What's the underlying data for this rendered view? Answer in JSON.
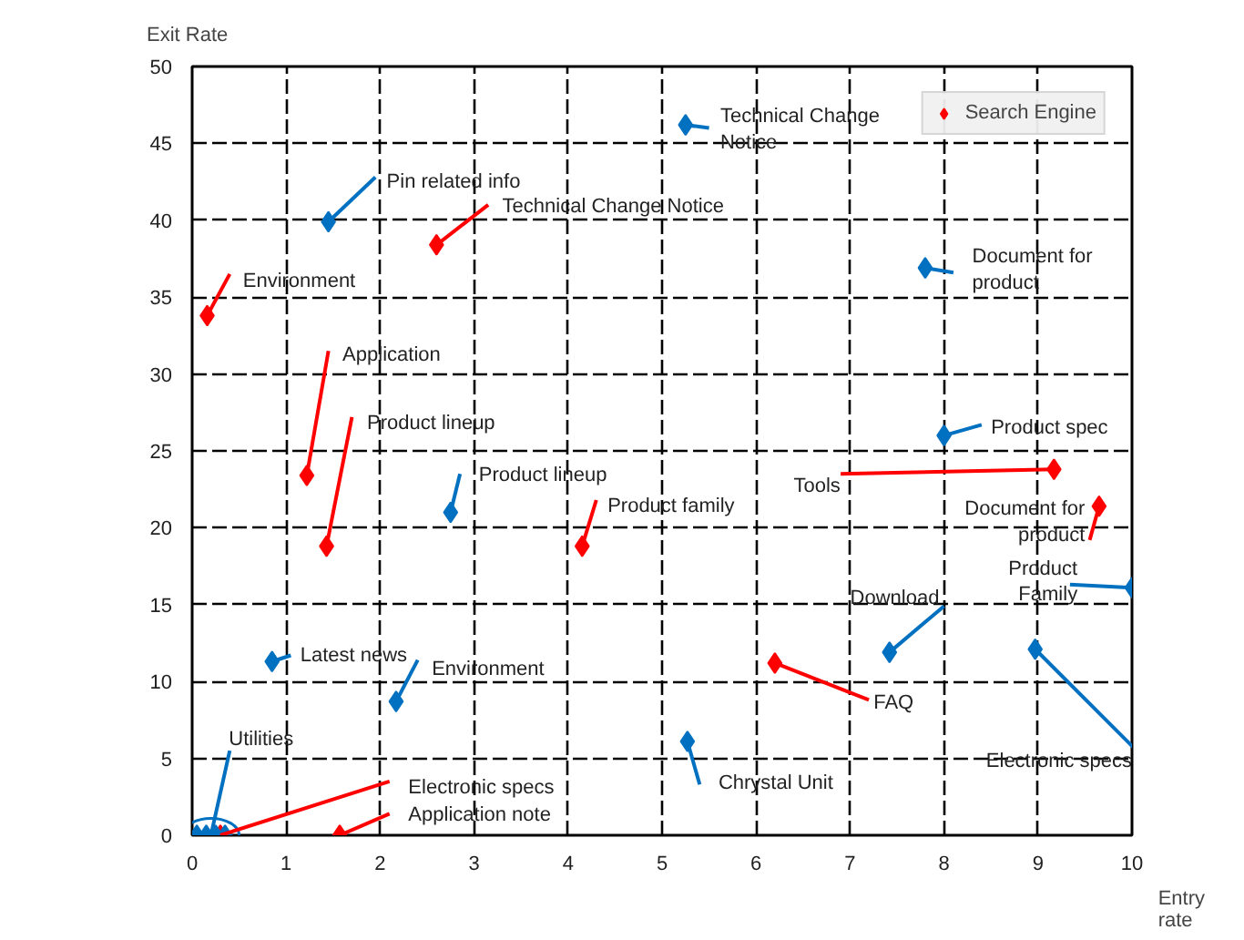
{
  "chart_data": {
    "type": "scatter",
    "xlabel": "Entry\nrate",
    "ylabel": "Exit Rate",
    "xlim": [
      0,
      10
    ],
    "ylim": [
      0,
      50
    ],
    "xticks": [
      0,
      1,
      2,
      3,
      4,
      5,
      6,
      7,
      8,
      9,
      10
    ],
    "yticks": [
      0,
      5,
      10,
      15,
      20,
      25,
      30,
      35,
      40,
      45,
      50
    ],
    "grid": true,
    "legend": "top right",
    "marker": "diamond",
    "series": [
      {
        "name": "Search Engine",
        "color": "#ff0000",
        "x": [
          0.16,
          2.6,
          1.22,
          1.43,
          4.15,
          6.2,
          9.17,
          9.65,
          0.3,
          1.57
        ],
        "values": [
          33.8,
          38.4,
          23.4,
          18.8,
          18.8,
          11.2,
          23.8,
          21.4,
          0,
          0
        ]
      },
      {
        "color": "#0070c0",
        "x": [
          1.45,
          5.25,
          7.8,
          8.0,
          2.75,
          0.85,
          2.17,
          5.27,
          7.42,
          10.0,
          8.97,
          0.05,
          0.15,
          0.25,
          0.35
        ],
        "values": [
          39.9,
          46.2,
          36.9,
          26.0,
          21.0,
          11.3,
          8.7,
          6.1,
          11.9,
          16.1,
          12.1,
          0,
          0,
          0,
          0
        ]
      }
    ],
    "annotations": [
      {
        "text": "Environment",
        "x": 0.16,
        "y": 33.8
      },
      {
        "text": "Technical Change Notice",
        "x": 2.6,
        "y": 38.4
      },
      {
        "text": "Application",
        "x": 1.22,
        "y": 23.4
      },
      {
        "text": "Product lineup",
        "x": 1.43,
        "y": 18.8
      },
      {
        "text": "Product family",
        "x": 4.15,
        "y": 18.8
      },
      {
        "text": "FAQ",
        "x": 6.2,
        "y": 11.2
      },
      {
        "text": "Tools",
        "x": 9.17,
        "y": 23.8
      },
      {
        "text": "Document for\nproduct",
        "x": 9.65,
        "y": 21.4
      },
      {
        "text": "Electronic specs",
        "x": 0.3,
        "y": 0
      },
      {
        "text": "Application note",
        "x": 1.57,
        "y": 0
      },
      {
        "text": "Pin related info",
        "x": 1.45,
        "y": 39.9
      },
      {
        "text": "Technical Change\nNotice",
        "x": 5.25,
        "y": 46.2
      },
      {
        "text": "Document for\nproduct",
        "x": 7.8,
        "y": 36.9
      },
      {
        "text": "Product spec",
        "x": 8.0,
        "y": 26.0
      },
      {
        "text": "Product lineup",
        "x": 2.75,
        "y": 21.0
      },
      {
        "text": "Latest news",
        "x": 0.85,
        "y": 11.3
      },
      {
        "text": "Environment",
        "x": 2.17,
        "y": 8.7
      },
      {
        "text": "Chrystal Unit",
        "x": 5.27,
        "y": 6.1
      },
      {
        "text": "Download",
        "x": 7.42,
        "y": 11.9
      },
      {
        "text": "Product\nFamily",
        "x": 10.0,
        "y": 16.1
      },
      {
        "text": "Electronic specs",
        "x": 8.97,
        "y": 12.1
      },
      {
        "text": "Utilities",
        "x": 0.2,
        "y": 0
      }
    ]
  }
}
